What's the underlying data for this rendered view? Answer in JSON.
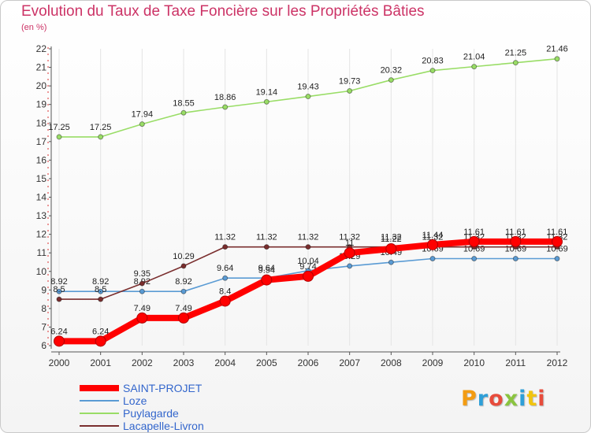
{
  "header": {
    "title": "Evolution du Taux de Taxe Foncière sur les Propriétés Bâties",
    "unit": "(en %)"
  },
  "brand": {
    "text": "Proxiti",
    "letter_colors": [
      "#f39c12",
      "#2e9fd8",
      "#e74c3c",
      "#8ac43f",
      "#2e9fd8",
      "#f1c40f",
      "#e74c3c"
    ]
  },
  "chart_data": {
    "type": "line",
    "x": [
      2000,
      2001,
      2002,
      2003,
      2004,
      2005,
      2006,
      2007,
      2008,
      2009,
      2010,
      2011,
      2012
    ],
    "xtick_labels": [
      "2000",
      "2001",
      "2002",
      "2003",
      "2004",
      "2005",
      "2006",
      "2007",
      "2008",
      "2009",
      "2010",
      "2011",
      "2012"
    ],
    "ylim": [
      6,
      22
    ],
    "yticks": [
      6,
      7,
      8,
      9,
      10,
      11,
      12,
      13,
      14,
      15,
      16,
      17,
      18,
      19,
      20,
      21,
      22
    ],
    "ytick_labels": [
      "6",
      "7",
      "8",
      "9",
      "10",
      "11",
      "12",
      "13",
      "14",
      "15",
      "16",
      "17",
      "18",
      "19",
      "20",
      "21",
      "22"
    ],
    "grid": "vertical",
    "legend_position": "bottom-left",
    "series": [
      {
        "name": "SAINT-PROJET",
        "color": "#ff0000",
        "emphasis": true,
        "values": [
          6.24,
          6.24,
          7.49,
          7.49,
          8.4,
          9.54,
          9.74,
          11.0,
          11.22,
          11.44,
          11.61,
          11.61,
          11.61
        ],
        "labels": [
          "6.24",
          "6.24",
          "7.49",
          "7.49",
          "8.4",
          "9.54",
          "9.74",
          "11",
          "11.22",
          "11.44",
          "11.61",
          "11.61",
          "11.61"
        ]
      },
      {
        "name": "Loze",
        "color": "#5a9bd4",
        "values": [
          8.92,
          8.92,
          8.92,
          8.92,
          9.64,
          9.64,
          10.04,
          10.29,
          10.49,
          10.69,
          10.69,
          10.69,
          10.69
        ],
        "labels": [
          "8.92",
          "8.92",
          "8.92",
          "8.92",
          "9.64",
          "9.64",
          "10.04",
          "10.29",
          "10.49",
          "10.69",
          "10.69",
          "10.69",
          "10.69"
        ]
      },
      {
        "name": "Puylagarde",
        "color": "#99dd66",
        "values": [
          17.25,
          17.25,
          17.94,
          18.55,
          18.86,
          19.14,
          19.43,
          19.73,
          20.32,
          20.83,
          21.04,
          21.25,
          21.46
        ],
        "labels": [
          "17.25",
          "17.25",
          "17.94",
          "18.55",
          "18.86",
          "19.14",
          "19.43",
          "19.73",
          "20.32",
          "20.83",
          "21.04",
          "21.25",
          "21.46"
        ]
      },
      {
        "name": "Lacapelle-Livron",
        "color": "#7a2e2e",
        "values": [
          8.5,
          8.5,
          9.35,
          10.29,
          11.32,
          11.32,
          11.32,
          11.32,
          11.32,
          11.32,
          11.32,
          11.32,
          11.32
        ],
        "labels": [
          "8.5",
          "8.5",
          "9.35",
          "10.29",
          "11.32",
          "11.32",
          "11.32",
          "11.32",
          "11.32",
          "11.32",
          "11.32",
          "11.32",
          "11.32"
        ]
      }
    ]
  }
}
